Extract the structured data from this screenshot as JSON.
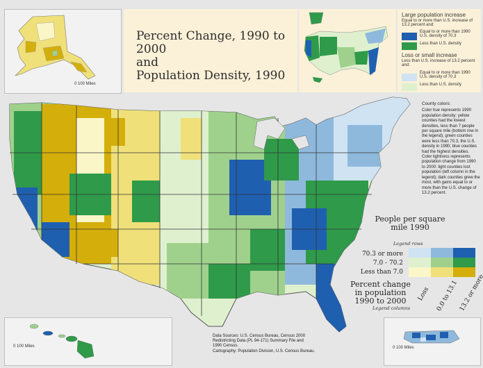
{
  "title": {
    "line1": "Percent Change, 1990 to 2000",
    "line2": "and",
    "line3": "Population Density, 1990"
  },
  "inset_legend": {
    "large_heading": "Large population increase",
    "large_sub": "Equal to or more than U.S. increase of 13.2 percent and:",
    "large_item1": "Equal to or more than 1990 U.S. density of 70.3",
    "large_item2": "Less than U.S. density",
    "loss_heading": "Loss or small increase",
    "loss_sub": "Less than U.S. increase of 13.2 percent and:",
    "loss_item1": "Equal to or more than 1990 U.S. density of 70.3",
    "loss_item2": "Less than U.S. density"
  },
  "county_colors": {
    "heading": "County colors:",
    "text": "Color hue represents 1990 population density: yellow counties had the lowest densities, less than 7 people per square mile (bottom row in the legend); green counties were less than 70.3, the U.S. density in 1990; blue counties had the highest densities. Color lightness represents population change from 1990 to 2000: light counties lost population (left column in the legend); dark counties grew the most, with gains equal to or more than the U.S. change of 13.2 percent."
  },
  "main_legend": {
    "density_title": "People per square mile 1990",
    "density_note": "Legend rows",
    "rows": [
      "70.3 or more",
      "7.0 - 70.2",
      "Less than 7.0"
    ],
    "change_title": "Percent change in population 1990 to 2000",
    "change_note": "Legend columns",
    "columns": [
      "Loss",
      "0.0 to 13.1",
      "13.2 or more"
    ]
  },
  "scale_labels": {
    "alaska": "0   100 Miles",
    "hawaii": "0   100 Miles",
    "puerto_rico": "0   100 Miles"
  },
  "sources": {
    "line1": "Data Sources: U.S. Census Bureau, Census 2000",
    "line2": "Redistricting Data (PL 94-171) Summary File and",
    "line3": "1990 Census.",
    "line4": "Cartography: Population Division, U.S. Census Bureau."
  },
  "colors": {
    "dark_blue": "#1f5fb0",
    "mid_blue": "#8fb9dc",
    "light_blue": "#cfe3f2",
    "dark_green": "#2f9a4a",
    "mid_green": "#9fd18d",
    "light_green": "#dff0cf",
    "dark_yellow": "#d4ae0a",
    "mid_yellow": "#efe07a",
    "light_yellow": "#fbf6c8",
    "background": "#e6e6e6",
    "title_bg": "#fbf1d8"
  }
}
